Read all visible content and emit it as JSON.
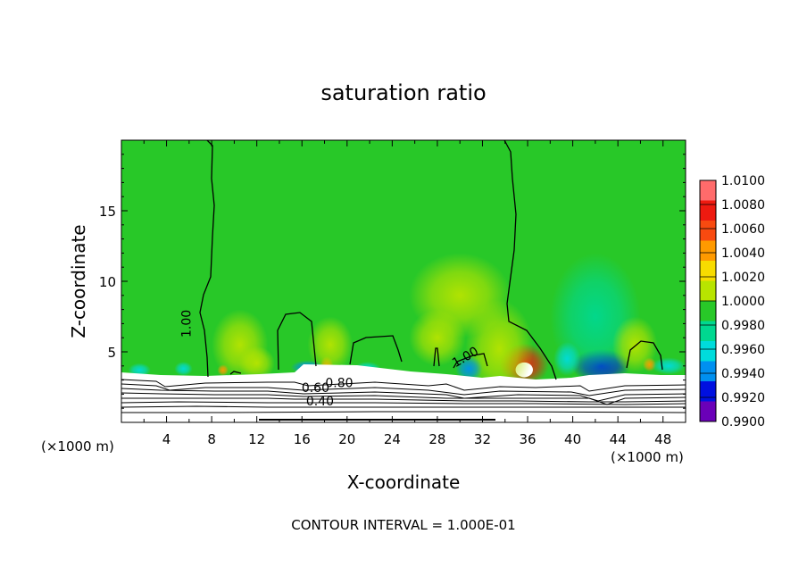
{
  "chart_data": {
    "type": "heatmap",
    "title": "saturation ratio",
    "xlabel": "X-coordinate",
    "ylabel": "Z-coordinate",
    "x_unit_left": "(×1000 m)",
    "x_unit_right": "(×1000 m)",
    "xlim": [
      0,
      50
    ],
    "ylim": [
      0,
      20
    ],
    "xticks": [
      4,
      8,
      12,
      16,
      20,
      24,
      28,
      32,
      36,
      40,
      44,
      48
    ],
    "yticks": [
      5,
      10,
      15
    ],
    "footer": "CONTOUR INTERVAL = 1.000E-01",
    "colorbar": {
      "labels": [
        "1.0100",
        "1.0080",
        "1.0060",
        "1.0040",
        "1.0020",
        "1.0000",
        "0.9980",
        "0.9960",
        "0.9940",
        "0.9920",
        "0.9900"
      ],
      "colors": [
        "#ff6b6b",
        "#ee1a10",
        "#f84a10",
        "#ff9a00",
        "#f8dc00",
        "#b8e400",
        "#28c828",
        "#00d890",
        "#00dcdc",
        "#0090f0",
        "#0010e0",
        "#6a00b8"
      ]
    },
    "background_value": 1.0,
    "ground_top_z": 3.5,
    "contour_labels": [
      {
        "text": "1.00",
        "x": 5.8,
        "z": 7.0,
        "rotate": -90
      },
      {
        "text": "1.00",
        "x": 30.5,
        "z": 4.6,
        "rotate": -30
      },
      {
        "text": "0.80",
        "x": 19.3,
        "z": 2.75,
        "rotate": 0
      },
      {
        "text": "0.60",
        "x": 17.2,
        "z": 2.4,
        "rotate": 0
      },
      {
        "text": "0.40",
        "x": 17.6,
        "z": 1.45,
        "rotate": 0
      }
    ],
    "anomalies": [
      {
        "x": 35.7,
        "z": 4.1,
        "value": 1.0075,
        "rx": 2.2,
        "rz": 1.5
      },
      {
        "x": 33.5,
        "z": 5.2,
        "value": 1.0012,
        "rx": 3.0,
        "rz": 3.5
      },
      {
        "x": 42.5,
        "z": 4.0,
        "value": 0.9925,
        "rx": 2.6,
        "rz": 1.2
      },
      {
        "x": 42.0,
        "z": 7.5,
        "value": 0.9978,
        "rx": 4.0,
        "rz": 4.5
      },
      {
        "x": 30.8,
        "z": 3.8,
        "value": 0.9945,
        "rx": 1.2,
        "rz": 0.9
      },
      {
        "x": 30.0,
        "z": 9.0,
        "value": 1.0006,
        "rx": 4.5,
        "rz": 3.0
      },
      {
        "x": 28.0,
        "z": 6.0,
        "value": 1.0004,
        "rx": 2.5,
        "rz": 2.0
      },
      {
        "x": 18.2,
        "z": 4.0,
        "value": 1.0045,
        "rx": 0.6,
        "rz": 0.7
      },
      {
        "x": 16.5,
        "z": 3.9,
        "value": 0.995,
        "rx": 1.5,
        "rz": 0.5
      },
      {
        "x": 18.5,
        "z": 5.5,
        "value": 1.0008,
        "rx": 2.0,
        "rz": 2.0
      },
      {
        "x": 12.0,
        "z": 4.2,
        "value": 1.0012,
        "rx": 1.6,
        "rz": 1.2
      },
      {
        "x": 10.5,
        "z": 5.5,
        "value": 1.0005,
        "rx": 2.5,
        "rz": 2.5
      },
      {
        "x": 9.0,
        "z": 3.7,
        "value": 1.004,
        "rx": 0.5,
        "rz": 0.4
      },
      {
        "x": 1.6,
        "z": 3.7,
        "value": 0.9952,
        "rx": 1.0,
        "rz": 0.5
      },
      {
        "x": 5.5,
        "z": 3.8,
        "value": 0.9955,
        "rx": 0.8,
        "rz": 0.5
      },
      {
        "x": 21.8,
        "z": 3.8,
        "value": 0.996,
        "rx": 1.2,
        "rz": 0.5
      },
      {
        "x": 46.8,
        "z": 4.1,
        "value": 1.0045,
        "rx": 0.6,
        "rz": 0.5
      },
      {
        "x": 48.5,
        "z": 4.0,
        "value": 0.996,
        "rx": 1.5,
        "rz": 0.6
      },
      {
        "x": 39.5,
        "z": 4.5,
        "value": 0.9965,
        "rx": 1.2,
        "rz": 1.2
      },
      {
        "x": 45.5,
        "z": 5.5,
        "value": 1.0006,
        "rx": 2.0,
        "rz": 2.0
      }
    ]
  }
}
